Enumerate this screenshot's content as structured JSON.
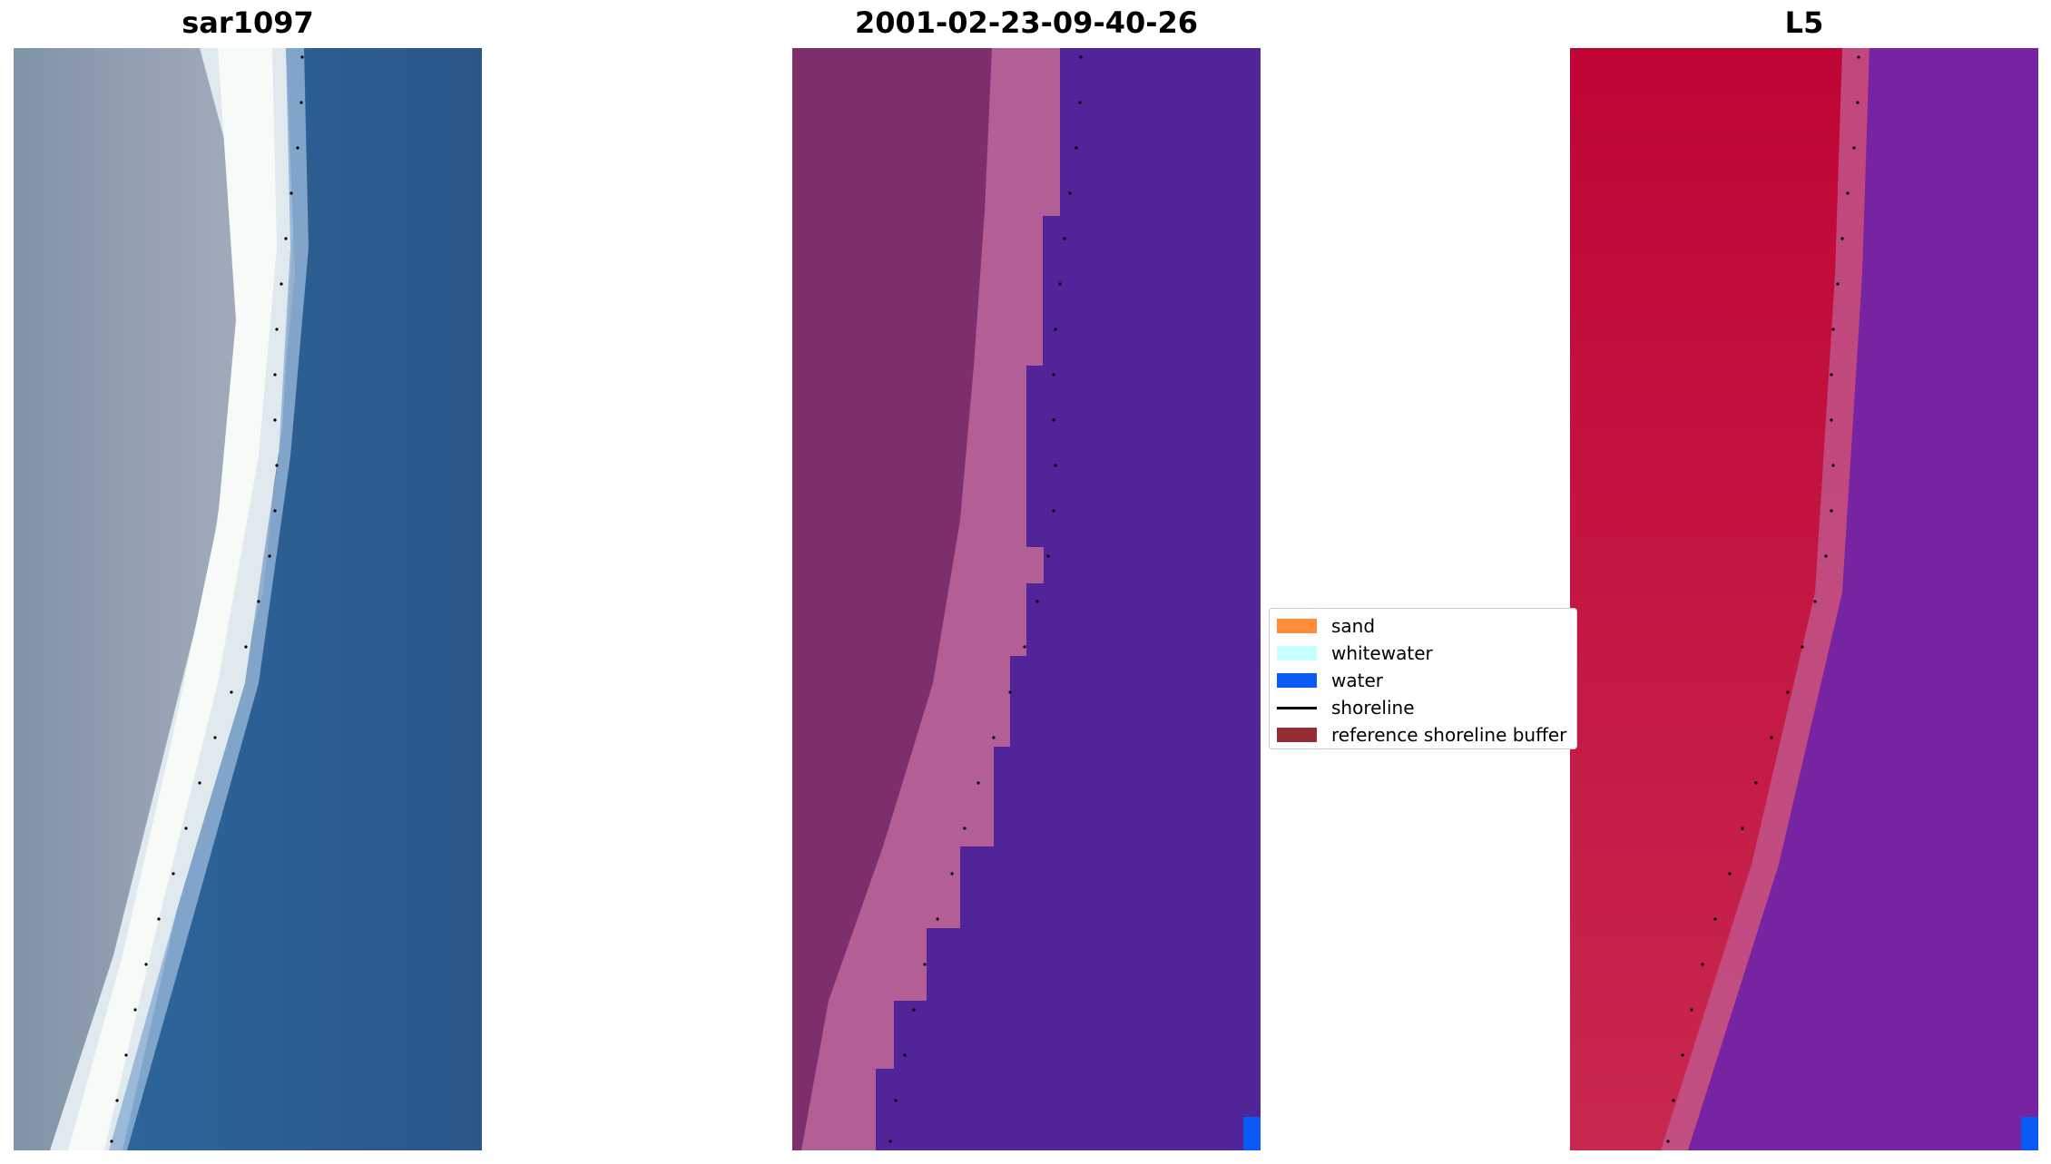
{
  "panels": [
    {
      "title": "sar1097",
      "style": "rgb"
    },
    {
      "title": "2001-02-23-09-40-26",
      "style": "classified"
    },
    {
      "title": "L5",
      "style": "index"
    }
  ],
  "legend": {
    "entries": [
      {
        "label": "sand",
        "color": "#ff8c3b",
        "kind": "patch"
      },
      {
        "label": "whitewater",
        "color": "#c8ffff",
        "kind": "patch"
      },
      {
        "label": "water",
        "color": "#0a5af5",
        "kind": "patch"
      },
      {
        "label": "shoreline",
        "color": "#000000",
        "kind": "line"
      },
      {
        "label": "reference shoreline buffer",
        "color": "#962d32",
        "kind": "patch"
      }
    ]
  },
  "colors": {
    "sea_rgb": "#2c5f95",
    "classified_water": "#52249a",
    "classified_sand": "#b45e96",
    "classified_land": "#7e2f6b",
    "index_land": "#c20a3a",
    "index_sea": "#6f1ea0",
    "shoreline_dots": "#000000"
  }
}
